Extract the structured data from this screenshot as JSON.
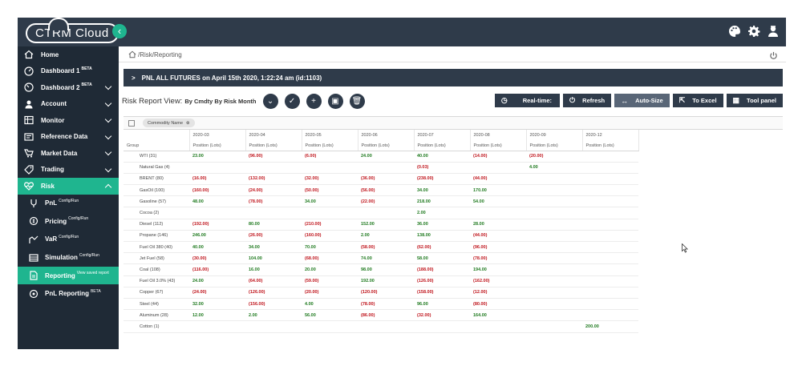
{
  "brand": {
    "logo_text": "CTRM Cloud"
  },
  "topbar": {
    "icons": [
      "palette-icon",
      "gear-icon",
      "user-icon"
    ],
    "accent": "#1fb58f",
    "bar_color": "#2f3b4a"
  },
  "sidebar": {
    "items": [
      {
        "label": "Home",
        "icon": "home-icon",
        "beta": "",
        "chevron": false
      },
      {
        "label": "Dashboard 1",
        "icon": "dashboard-icon",
        "beta": "BETA",
        "chevron": false
      },
      {
        "label": "Dashboard 2",
        "icon": "dashboard-icon",
        "beta": "BETA",
        "chevron": true
      },
      {
        "label": "Account",
        "icon": "account-icon",
        "beta": "",
        "chevron": true
      },
      {
        "label": "Monitor",
        "icon": "monitor-icon",
        "beta": "",
        "chevron": true
      },
      {
        "label": "Reference Data",
        "icon": "reference-data-icon",
        "beta": "",
        "chevron": true
      },
      {
        "label": "Market Data",
        "icon": "market-data-icon",
        "beta": "",
        "chevron": true
      },
      {
        "label": "Trading",
        "icon": "trading-icon",
        "beta": "",
        "chevron": true
      },
      {
        "label": "Risk",
        "icon": "heartbeat-icon",
        "beta": "",
        "chevron": true
      }
    ],
    "risk_subitems": [
      {
        "label": "PnL",
        "sup": "Config/Run",
        "icon": "pnl-icon"
      },
      {
        "label": "Pricing",
        "sup": "Config/Run",
        "icon": "pricing-icon"
      },
      {
        "label": "VaR",
        "sup": "Config/Run",
        "icon": "var-icon"
      },
      {
        "label": "Simulation",
        "sup": "Config/Run",
        "icon": "simulation-icon"
      },
      {
        "label": "Reporting",
        "sup": "View saved report",
        "icon": "reporting-icon"
      },
      {
        "label": "PnL Reporting",
        "sup": "BETA",
        "icon": "pnl-reporting-icon"
      }
    ]
  },
  "breadcrumb": {
    "text": "/Risk/Reporting"
  },
  "banner": {
    "text": "PNL ALL FUTURES on April 15th 2020, 1:22:24 am (id:1103)"
  },
  "view": {
    "label": "Risk Report View:",
    "value": "By Cmdty By Risk Month",
    "buttons": [
      "Real-time:",
      "Refresh",
      "Auto-Size",
      "To Excel",
      "Tool panel"
    ]
  },
  "grid": {
    "group_chip": "Commodity Name",
    "group_header": "Group",
    "metric_label": "Position (Lots)",
    "columns": [
      "2020-03",
      "2020-04",
      "2020-05",
      "2020-06",
      "2020-07",
      "2020-08",
      "2020-09",
      "2020-12"
    ],
    "rows": [
      {
        "name": "WTI (31)",
        "values": [
          "23.00",
          "(96.00)",
          "(6.00)",
          "24.00",
          "40.00",
          "(14.00)",
          "(20.00)",
          ""
        ]
      },
      {
        "name": "Natural Gas (4)",
        "values": [
          "",
          "",
          "",
          "",
          "(0.03)",
          "",
          "4.00",
          ""
        ]
      },
      {
        "name": "BRENT (80)",
        "values": [
          "(16.00)",
          "(132.00)",
          "(32.00)",
          "(36.00)",
          "(238.00)",
          "(44.00)",
          "",
          ""
        ]
      },
      {
        "name": "GasOil (100)",
        "values": [
          "(160.00)",
          "(24.00)",
          "(50.00)",
          "(56.00)",
          "34.00",
          "170.00",
          "",
          ""
        ]
      },
      {
        "name": "Gasoline (57)",
        "values": [
          "48.00",
          "(78.00)",
          "34.00",
          "(22.00)",
          "218.00",
          "54.00",
          "",
          ""
        ]
      },
      {
        "name": "Cocoa (2)",
        "values": [
          "",
          "",
          "",
          "",
          "2.00",
          "",
          "",
          ""
        ]
      },
      {
        "name": "Diesel (112)",
        "values": [
          "(192.00)",
          "80.00",
          "(210.00)",
          "152.00",
          "36.00",
          "28.00",
          "",
          ""
        ]
      },
      {
        "name": "Propane (146)",
        "values": [
          "246.00",
          "(26.00)",
          "(160.00)",
          "2.00",
          "138.00",
          "(44.00)",
          "",
          ""
        ]
      },
      {
        "name": "Fuel Oil 380 (40)",
        "values": [
          "40.00",
          "34.00",
          "70.00",
          "(58.00)",
          "(62.00)",
          "(96.00)",
          "",
          ""
        ]
      },
      {
        "name": "Jet Fuel (58)",
        "values": [
          "(30.00)",
          "104.00",
          "(68.00)",
          "74.00",
          "58.00",
          "(78.00)",
          "",
          ""
        ]
      },
      {
        "name": "Coal (108)",
        "values": [
          "(116.00)",
          "16.00",
          "20.00",
          "98.00",
          "(188.00)",
          "194.00",
          "",
          ""
        ]
      },
      {
        "name": "Fuel Oil 3.0% (43)",
        "values": [
          "24.00",
          "(64.00)",
          "(59.00)",
          "192.00",
          "(126.00)",
          "(162.00)",
          "",
          ""
        ]
      },
      {
        "name": "Copper (67)",
        "values": [
          "(24.00)",
          "(126.00)",
          "(20.00)",
          "(120.00)",
          "(158.00)",
          "(12.00)",
          "",
          ""
        ]
      },
      {
        "name": "Steel (44)",
        "values": [
          "32.00",
          "(156.00)",
          "4.00",
          "(78.00)",
          "96.00",
          "(80.00)",
          "",
          ""
        ]
      },
      {
        "name": "Aluminum (28)",
        "values": [
          "12.00",
          "2.00",
          "56.00",
          "(86.00)",
          "(32.00)",
          "164.00",
          "",
          ""
        ]
      },
      {
        "name": "Cotton (1)",
        "values": [
          "",
          "",
          "",
          "",
          "",
          "",
          "",
          "200.00"
        ]
      }
    ]
  },
  "colors": {
    "negative": "#c0161d",
    "positive": "#1f7a1f"
  }
}
